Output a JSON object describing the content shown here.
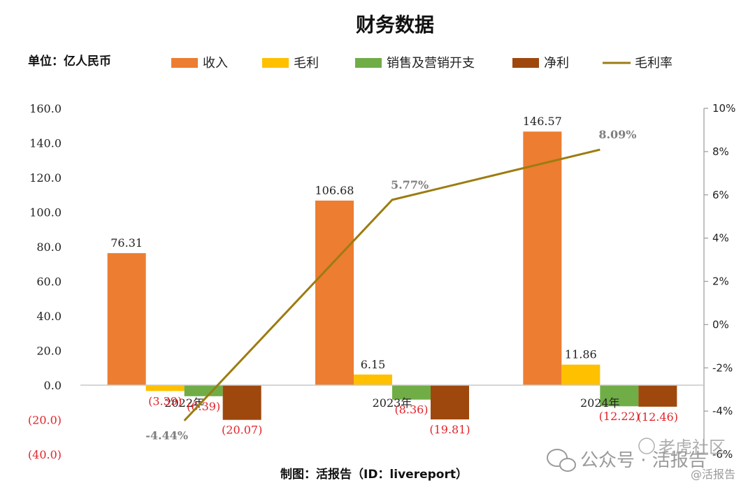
{
  "chart_data": {
    "type": "bar",
    "title": "财务数据",
    "unit_label": "单位：亿人民币",
    "categories": [
      "2022年",
      "2023年",
      "2024年"
    ],
    "series": [
      {
        "name": "收入",
        "color": "#ed7d31",
        "values": [
          76.31,
          106.68,
          146.57
        ],
        "labels": [
          "76.31",
          "106.68",
          "146.57"
        ]
      },
      {
        "name": "毛利",
        "color": "#ffc000",
        "values": [
          -3.39,
          6.15,
          11.86
        ],
        "labels": [
          "(3.39)",
          "6.15",
          "11.86"
        ]
      },
      {
        "name": "销售及营销开支",
        "color": "#70ad47",
        "values": [
          -6.39,
          -8.36,
          -12.22
        ],
        "labels": [
          "(6.39)",
          "(8.36)",
          "(12.22)"
        ]
      },
      {
        "name": "净利",
        "color": "#9e480e",
        "values": [
          -20.07,
          -19.81,
          -12.46
        ],
        "labels": [
          "(20.07)",
          "(19.81)",
          "(12.46)"
        ]
      }
    ],
    "line_series": {
      "name": "毛利率",
      "color": "#9c7c10",
      "values": [
        -4.44,
        5.77,
        8.09
      ],
      "labels": [
        "-4.44%",
        "5.77%",
        "8.09%"
      ]
    },
    "left_axis": {
      "ylim": [
        -40,
        160
      ],
      "ticks": [
        160,
        140,
        120,
        100,
        80,
        60,
        40,
        20,
        0,
        -20,
        -40
      ],
      "tick_labels": [
        "160.0",
        "140.0",
        "120.0",
        "100.0",
        "80.0",
        "60.0",
        "40.0",
        "20.0",
        "0.0",
        "(20.0)",
        "(40.0)"
      ]
    },
    "right_axis": {
      "ylim": [
        -6,
        10
      ],
      "ticks": [
        10,
        8,
        6,
        4,
        2,
        0,
        -2,
        -4,
        -6
      ],
      "tick_labels": [
        "10%",
        "8%",
        "6%",
        "4%",
        "2%",
        "0%",
        "-2%",
        "-4%",
        "-6%"
      ]
    },
    "grid": false,
    "legend_placement": "top"
  },
  "footer": "制图：活报告（ID：livereport）",
  "watermark": {
    "wechat": "公众号 · 活报告",
    "brand": "老虎社区",
    "handle": "@活报告"
  }
}
